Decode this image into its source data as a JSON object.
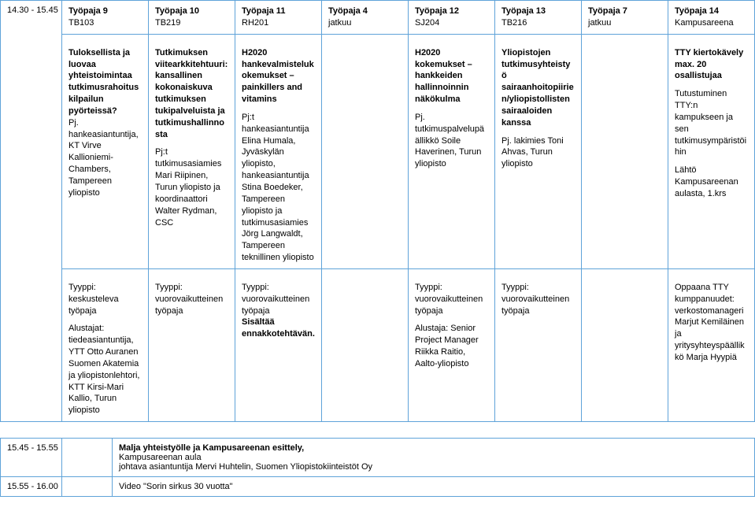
{
  "colors": {
    "border": "#5fa3d9",
    "text": "#000000",
    "background": "#ffffff"
  },
  "fontsize_pt": 8,
  "row1_time": "14.30 - 15.45",
  "cols": [
    {
      "hdr_bold": "Työpaja 9",
      "hdr_plain": "TB103"
    },
    {
      "hdr_bold": "Työpaja 10",
      "hdr_plain": "TB219"
    },
    {
      "hdr_bold": "Työpaja 11",
      "hdr_plain": "RH201"
    },
    {
      "hdr_bold": "Työpaja 4",
      "hdr_plain": "jatkuu"
    },
    {
      "hdr_bold": "Työpaja 12",
      "hdr_plain": "SJ204"
    },
    {
      "hdr_bold": "Työpaja 13",
      "hdr_plain": "TB216"
    },
    {
      "hdr_bold": "Työpaja 7",
      "hdr_plain": "jatkuu"
    },
    {
      "hdr_bold": "Työpaja 14",
      "hdr_plain": "Kampusareena"
    }
  ],
  "row2": [
    {
      "bold": "Tuloksellista ja luovaa yhteistoimintaa tutkimusrahoituskilpailun pyörteissä?",
      "plain": " Pj. hankeasiantuntija, KT Virve Kallioniemi-Chambers, Tampereen yliopisto"
    },
    {
      "bold": "Tutkimuksen viitearkkitehtuuri: kansallinen kokonaiskuva tutkimuksen tukipalveluista ja tutkimushallinnosta",
      "plain": "\nPj:t tutkimusasiamies Mari Riipinen, Turun yliopisto ja koordinaattori Walter Rydman, CSC"
    },
    {
      "bold": "H2020 hankevalmistelukokemukset – painkillers and vitamins",
      "plain": "\nPj:t hankeasiantuntija Elina Humala, Jyväskylän yliopisto, hankeasiantuntija Stina Boedeker, Tampereen yliopisto ja tutkimusasiamies Jörg Langwaldt, Tampereen teknillinen yliopisto"
    },
    {
      "bold": "",
      "plain": ""
    },
    {
      "bold": "H2020 kokemukset – hankkeiden hallinnoinnin näkökulma",
      "plain": "\nPj. tutkimuspalvelupäällikkö Soile Haverinen, Turun yliopisto"
    },
    {
      "bold": "Yliopistojen tutkimusyhteistyö sairaanhoitopiirien/yliopistollisten sairaaloiden kanssa",
      "plain": "\nPj. lakimies Toni Ahvas, Turun yliopisto"
    },
    {
      "bold": "",
      "plain": ""
    },
    {
      "bold": "TTY kiertokävely max. 20 osallistujaa",
      "plain": "\nTutustuminen TTY:n kampukseen ja sen tutkimusympäristöihin\n\nLähtö Kampusareenan aulasta, 1.krs"
    }
  ],
  "row3": [
    "Tyyppi: keskusteleva työpaja\n\nAlustajat: tiedeasiantuntija, YTT Otto Auranen Suomen Akatemia ja yliopistonlehtori, KTT Kirsi-Mari Kallio, Turun yliopisto",
    "Tyyppi: vuorovaikutteinen työpaja",
    "Tyyppi: vuorovaikutteinen työpaja\nSisältää ennakkotehtävän.",
    "",
    "Tyyppi: vuorovaikutteinen työpaja\n\nAlustaja: Senior Project Manager Riikka Raitio, Aalto-yliopisto",
    "Tyyppi: vuorovaikutteinen työpaja",
    "",
    "Oppaana TTY kumppanuudet: verkostomanageri Marjut Kemiläinen ja yritysyhteyspäällikkö Marja Hyypiä"
  ],
  "row3_bold_line": {
    "2": "Sisältää ennakkotehtävän."
  },
  "footer": [
    {
      "time": "15.45 - 15.55",
      "bold": "Malja yhteistyölle ja Kampusareenan esittely,",
      "plain": " Kampusareenan aula\njohtava asiantuntija Mervi Huhtelin, Suomen Yliopistokiinteistöt Oy"
    },
    {
      "time": "15.55 - 16.00",
      "bold": "",
      "plain": "Video \"Sorin sirkus 30 vuotta\""
    }
  ]
}
